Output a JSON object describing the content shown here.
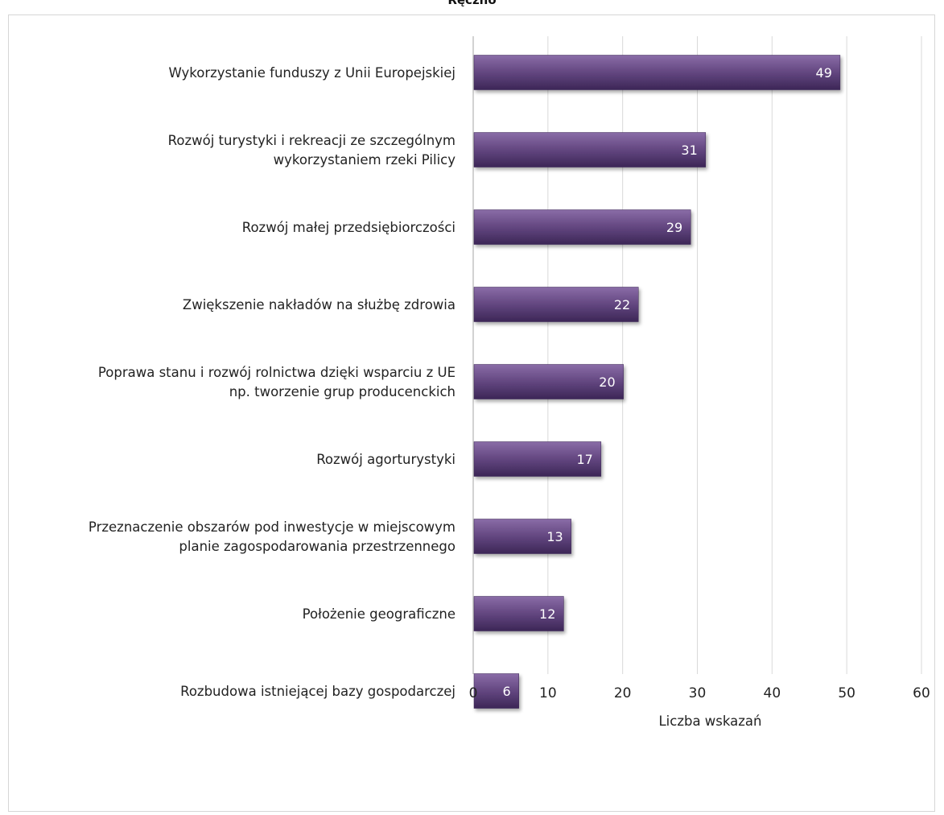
{
  "header": {
    "title": "Ręczno"
  },
  "chart_data": {
    "type": "bar",
    "orientation": "horizontal",
    "categories": [
      [
        "Wykorzystanie funduszy z Unii Europejskiej"
      ],
      [
        "Rozwój turystyki i rekreacji ze szczególnym",
        "wykorzystaniem rzeki Pilicy"
      ],
      [
        "Rozwój małej przedsiębiorczości"
      ],
      [
        "Zwiększenie nakładów na służbę zdrowia"
      ],
      [
        "Poprawa stanu i rozwój rolnictwa dzięki wsparciu z UE",
        "np. tworzenie grup producenckich"
      ],
      [
        "Rozwój agorturystyki"
      ],
      [
        "Przeznaczenie obszarów pod inwestycje w miejscowym",
        "planie zagospodarowania przestrzennego"
      ],
      [
        "Położenie geograficzne"
      ],
      [
        "Rozbudowa istniejącej bazy gospodarczej"
      ]
    ],
    "values": [
      49,
      31,
      29,
      22,
      20,
      17,
      13,
      12,
      6
    ],
    "xlabel": "Liczba wskazań",
    "ylabel": "",
    "xlim": [
      0,
      60
    ],
    "ticks": [
      0,
      10,
      20,
      30,
      40,
      50,
      60
    ],
    "grid": true,
    "data_labels": true,
    "colors": {
      "bar_light": "#8a6ca7",
      "bar_mid": "#5f437c",
      "bar_dark": "#3c2656",
      "grid": "#d9d9d9",
      "axis": "#a6a6a6"
    }
  }
}
